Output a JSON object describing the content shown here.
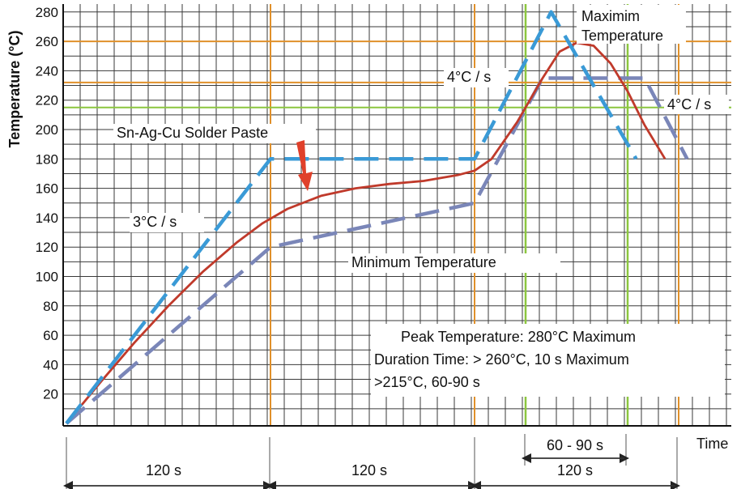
{
  "chart_data": {
    "type": "line",
    "title": "",
    "ylabel": "Temperature (°C)",
    "xlabel": "Time",
    "ylim": [
      0,
      290
    ],
    "yticks": [
      20,
      40,
      60,
      80,
      100,
      120,
      140,
      160,
      180,
      200,
      220,
      240,
      260,
      280
    ],
    "reference_lines": [
      215,
      232,
      260
    ],
    "colors": {
      "max": "#3a9ad6",
      "typ": "#c03a2b",
      "min": "#7a86b8",
      "grid": "#3a3a3a",
      "orange": "#e0902a",
      "green": "#8cc63f",
      "arrow": "#e0402a"
    },
    "series": [
      {
        "key": "max",
        "name": "Maximim Temperature",
        "style": "dashed",
        "x": [
          0,
          120,
          240,
          285,
          335
        ],
        "y": [
          0,
          180,
          180,
          280,
          180
        ]
      },
      {
        "key": "typ",
        "name": "Sn-Ag-Cu Solder Paste",
        "style": "solid",
        "x": [
          0,
          20,
          40,
          60,
          80,
          100,
          115,
          130,
          150,
          170,
          190,
          210,
          230,
          240,
          250,
          265,
          280,
          290,
          300,
          310,
          320,
          330,
          340,
          352
        ],
        "y": [
          0,
          28,
          55,
          80,
          103,
          123,
          136,
          146,
          155,
          160,
          163,
          165,
          169,
          172,
          180,
          205,
          235,
          253,
          259,
          257,
          245,
          226,
          203,
          180
        ]
      },
      {
        "key": "min",
        "name": "Minimum Temperature",
        "style": "dashed",
        "x": [
          0,
          120,
          240,
          280,
          340,
          365
        ],
        "y": [
          0,
          120,
          150,
          235,
          235,
          180
        ]
      }
    ],
    "annotations": {
      "solder_paste": "Sn-Ag-Cu Solder Paste",
      "ramp_rate": "3°C / s",
      "rate_max": "4°C / s",
      "rate_min": "4°C / s",
      "max_temp_line1": "Maximim",
      "max_temp_line2": "Temperature",
      "min_temp": "Minimum Temperature",
      "spec_line1": "Peak Temperature: 280°C Maximum",
      "spec_line2": "Duration Time: > 260°C, 10 s Maximum",
      "spec_line3": ">215°C, 60-90 s"
    },
    "time_segments": [
      "120 s",
      "120 s",
      "120 s"
    ],
    "duration_label": "60 - 90 s"
  }
}
